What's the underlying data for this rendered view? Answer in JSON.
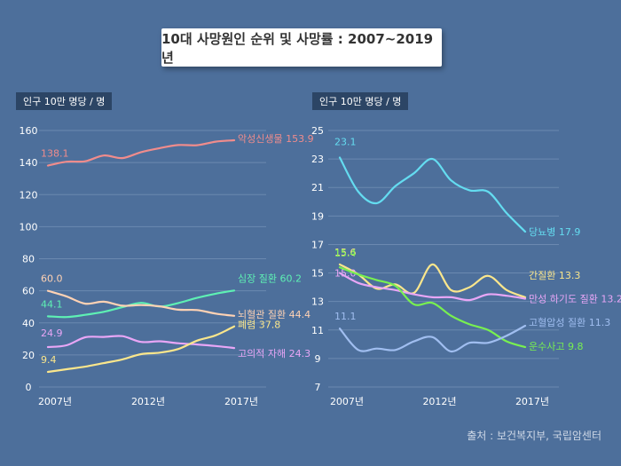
{
  "title": "10대 사망원인 순위 및 사망률 : 2007~2019년",
  "source": "출처 : 보건복지부, 국립암센터",
  "chart_data": [
    {
      "type": "line",
      "unit_label": "인구 10만 명당 / 명",
      "x": [
        2007,
        2008,
        2009,
        2010,
        2011,
        2012,
        2013,
        2014,
        2015,
        2016,
        2017
      ],
      "xticks": [
        2007,
        2012,
        2017
      ],
      "xtick_labels": [
        "2007년",
        "2012년",
        "2017년"
      ],
      "ylim": [
        0,
        160
      ],
      "yticks": [
        0,
        20,
        40,
        60,
        80,
        100,
        120,
        140,
        160
      ],
      "grid": true,
      "series": [
        {
          "name": "악성신생물",
          "color": "#f08c8c",
          "values": [
            138.1,
            140.5,
            140.8,
            144.4,
            142.8,
            146.5,
            149.0,
            150.9,
            150.8,
            153.0,
            153.9
          ],
          "start_label": "138.1",
          "end_label": "악성신생물 153.9"
        },
        {
          "name": "심장 질환",
          "color": "#5ef0b4",
          "values": [
            44.1,
            43.6,
            45.0,
            46.9,
            49.8,
            52.5,
            50.2,
            52.4,
            55.6,
            58.2,
            60.2
          ],
          "start_label": "44.1",
          "end_label": "심장 질환 60.2"
        },
        {
          "name": "뇌혈관 질환",
          "color": "#ffd2b4",
          "values": [
            60.0,
            56.5,
            52.0,
            53.2,
            50.7,
            51.1,
            50.3,
            48.2,
            48.0,
            45.8,
            44.4
          ],
          "start_label": "60.0",
          "end_label": "뇌혈관 질환 44.4"
        },
        {
          "name": "고의적 자해",
          "color": "#e8a6f6",
          "values": [
            24.9,
            26.0,
            31.0,
            31.2,
            31.7,
            28.1,
            28.5,
            27.3,
            26.5,
            25.6,
            24.3
          ],
          "start_label": "24.9",
          "end_label": "고의적 자해 24.3"
        },
        {
          "name": "폐렴",
          "color": "#fae68c",
          "values": [
            9.4,
            11.1,
            12.7,
            14.9,
            17.2,
            20.5,
            21.4,
            23.7,
            28.9,
            32.2,
            37.8
          ],
          "start_label": "9.4",
          "end_label": "폐렴 37.8"
        }
      ]
    },
    {
      "type": "line",
      "unit_label": "인구 10만 명당 / 명",
      "x": [
        2007,
        2008,
        2009,
        2010,
        2011,
        2012,
        2013,
        2014,
        2015,
        2016,
        2017
      ],
      "xticks": [
        2007,
        2012,
        2017
      ],
      "xtick_labels": [
        "2007년",
        "2012년",
        "2017년"
      ],
      "ylim": [
        7,
        25
      ],
      "yticks": [
        7,
        9,
        11,
        13,
        15,
        17,
        19,
        21,
        23,
        25
      ],
      "grid": true,
      "series": [
        {
          "name": "당뇨병",
          "color": "#64dcf0",
          "values": [
            23.1,
            20.7,
            19.9,
            21.1,
            22.0,
            23.0,
            21.5,
            20.8,
            20.7,
            19.2,
            17.9
          ],
          "start_label": "23.1",
          "end_label": "당뇨병 17.9"
        },
        {
          "name": "간질환",
          "color": "#fae68c",
          "values": [
            15.6,
            14.9,
            13.9,
            14.2,
            13.6,
            15.6,
            13.8,
            14.0,
            14.8,
            13.8,
            13.3
          ],
          "start_label": "15.6",
          "end_label": "간질환 13.3"
        },
        {
          "name": "만성 하기도 질환",
          "color": "#e8a6f6",
          "values": [
            15.0,
            14.3,
            14.0,
            13.8,
            13.5,
            13.3,
            13.3,
            13.1,
            13.5,
            13.4,
            13.2
          ],
          "start_label": "15.0",
          "end_label": "만성 하기도 질환 13.2"
        },
        {
          "name": "운수사고",
          "color": "#78f050",
          "values": [
            15.4,
            14.9,
            14.5,
            14.1,
            12.8,
            12.9,
            12.0,
            11.4,
            11.0,
            10.2,
            9.8
          ],
          "start_label": "15.4",
          "end_label": "운수사고 9.8"
        },
        {
          "name": "고혈압성 질환",
          "color": "#a0bef0",
          "values": [
            11.1,
            9.6,
            9.7,
            9.6,
            10.2,
            10.5,
            9.5,
            10.1,
            10.1,
            10.6,
            11.3
          ],
          "start_label": "11.1",
          "end_label": "고혈압성 질환 11.3"
        }
      ]
    }
  ]
}
